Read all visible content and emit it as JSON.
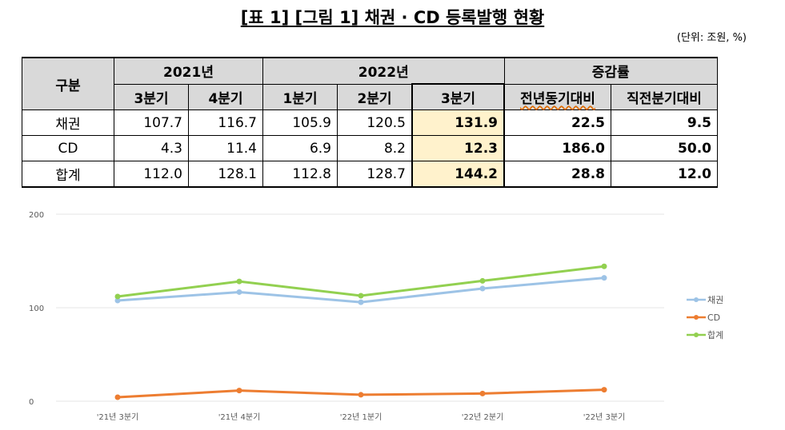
{
  "title": "[표 1] [그림 1] 채권 · CD 등록발행 현황",
  "unit": "(단위: 조원, %)",
  "table": {
    "group_header": "구분",
    "year_2021": "2021년",
    "year_2022": "2022년",
    "change_header": "증감률",
    "sub_headers": [
      "3분기",
      "4분기",
      "1분기",
      "2분기",
      "3분기",
      "전년동기대비",
      "직전분기대비"
    ],
    "rows": [
      {
        "label": "채권",
        "values": [
          "107.7",
          "116.7",
          "105.9",
          "120.5",
          "131.9",
          "22.5",
          "9.5"
        ]
      },
      {
        "label": "CD",
        "values": [
          "4.3",
          "11.4",
          "6.9",
          "8.2",
          "12.3",
          "186.0",
          "50.0"
        ]
      },
      {
        "label": "합계",
        "values": [
          "112.0",
          "128.1",
          "112.8",
          "128.7",
          "144.2",
          "28.8",
          "12.0"
        ]
      }
    ]
  },
  "chart_data": {
    "type": "line",
    "categories": [
      "'21년 3분기",
      "'21년 4분기",
      "'22년 1분기",
      "'22년 2분기",
      "'22년 3분기"
    ],
    "series": [
      {
        "name": "채권",
        "values": [
          107.7,
          116.7,
          105.9,
          120.5,
          131.9
        ],
        "color": "#9dc3e6"
      },
      {
        "name": "CD",
        "values": [
          4.3,
          11.4,
          6.9,
          8.2,
          12.3
        ],
        "color": "#ed7d31"
      },
      {
        "name": "합계",
        "values": [
          112.0,
          128.1,
          112.8,
          128.7,
          144.2
        ],
        "color": "#92d050"
      }
    ],
    "y_ticks": [
      "0",
      "100",
      "200"
    ],
    "ylim": [
      0,
      200
    ],
    "grid": true,
    "legend": "right"
  }
}
